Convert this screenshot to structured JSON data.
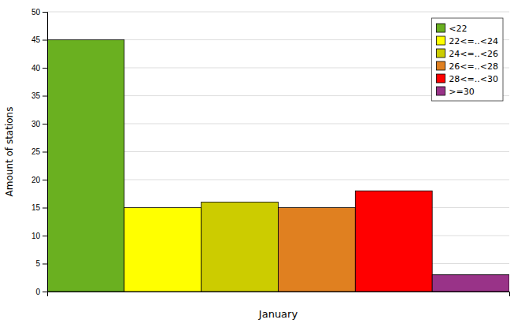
{
  "chart_data": {
    "type": "bar",
    "xlabel": "January",
    "ylabel": "Amount of stations",
    "categories": [
      "<22",
      "22<=..<24",
      "24<=..<26",
      "26<=..<28",
      "28<=..<30",
      ">=30"
    ],
    "values": [
      45,
      15,
      16,
      15,
      18,
      3
    ],
    "colors": [
      "#6ab020",
      "#ffff00",
      "#cccc00",
      "#e08020",
      "#ff0000",
      "#993388"
    ],
    "ylim": [
      0,
      50
    ],
    "yticks": [
      0,
      5,
      10,
      15,
      20,
      25,
      30,
      35,
      40,
      45,
      50
    ],
    "grid": true,
    "legend": "upper right",
    "tick_labels": "y"
  }
}
